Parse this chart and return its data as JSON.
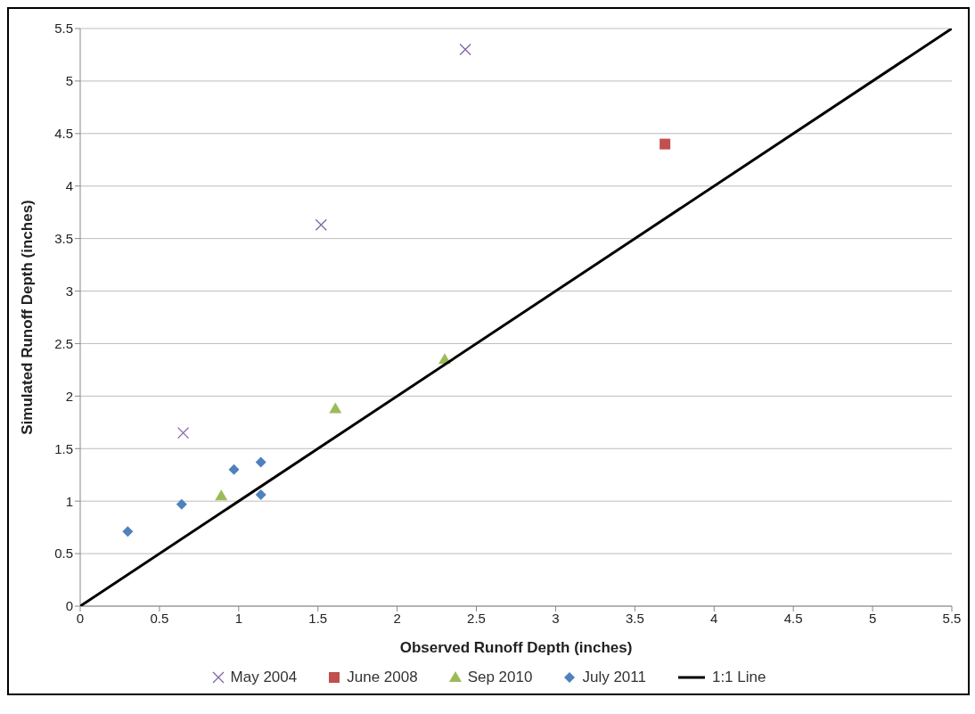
{
  "chart_data": {
    "type": "scatter",
    "xlabel": "Observed Runoff Depth (inches)",
    "ylabel": "Simulated Runoff Depth (inches)",
    "xlim": [
      0,
      5.5
    ],
    "ylim": [
      0,
      5.5
    ],
    "xticks": [
      0,
      0.5,
      1,
      1.5,
      2,
      2.5,
      3,
      3.5,
      4,
      4.5,
      5,
      5.5
    ],
    "yticks": [
      0,
      0.5,
      1,
      1.5,
      2,
      2.5,
      3,
      3.5,
      4,
      4.5,
      5,
      5.5
    ],
    "grid": "y",
    "legend": "bottom",
    "series": [
      {
        "name": "May 2004",
        "color": "#8064a2",
        "marker": "cross",
        "x": [
          0.65,
          1.52,
          2.43
        ],
        "values": [
          1.65,
          3.63,
          5.3
        ]
      },
      {
        "name": "June 2008",
        "color": "#c0504d",
        "marker": "square",
        "x": [
          3.69
        ],
        "values": [
          4.4
        ]
      },
      {
        "name": "Sep 2010",
        "color": "#9bbb59",
        "marker": "triangle",
        "x": [
          0.89,
          1.61,
          2.3
        ],
        "values": [
          1.05,
          1.88,
          2.35
        ]
      },
      {
        "name": "July 2011",
        "color": "#4f81bd",
        "marker": "diamond",
        "x": [
          0.3,
          0.64,
          0.97,
          1.14,
          1.14
        ],
        "values": [
          0.71,
          0.97,
          1.3,
          1.37,
          1.06
        ]
      },
      {
        "name": "1:1 Line",
        "type": "line",
        "color": "#000000",
        "marker": "none",
        "x": [
          0,
          5.5
        ],
        "values": [
          0,
          5.5
        ]
      }
    ]
  }
}
